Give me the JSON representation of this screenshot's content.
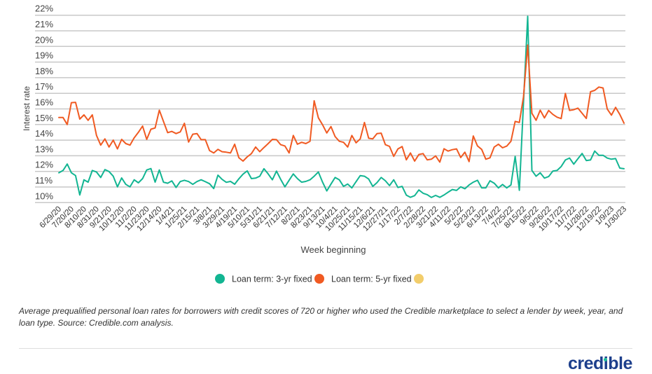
{
  "chart_data": {
    "type": "line",
    "title": "",
    "xlabel": "Week beginning",
    "ylabel": "Interest rate",
    "ylim": [
      10,
      22
    ],
    "yticks": [
      "10%",
      "11%",
      "12%",
      "13%",
      "14%",
      "15%",
      "16%",
      "17%",
      "18%",
      "19%",
      "20%",
      "21%",
      "22%"
    ],
    "x_start": "6/29/20",
    "x_interval": "weekly",
    "xtick_every": 3,
    "xticks": [
      "6/29/20",
      "7/20/20",
      "8/10/20",
      "8/31/20",
      "9/21/20",
      "10/12/20",
      "11/2/20",
      "11/23/20",
      "12/14/20",
      "1/4/21",
      "1/25/21",
      "2/15/21",
      "3/8/21",
      "3/29/21",
      "4/19/21",
      "5/10/21",
      "5/31/21",
      "6/21/21",
      "7/12/21",
      "8/2/21",
      "8/23/21",
      "9/13/21",
      "10/4/21",
      "10/25/21",
      "11/15/21",
      "12/6/21",
      "12/27/21",
      "1/17/22",
      "2/7/22",
      "2/28/22",
      "3/21/22",
      "4/11/22",
      "5/2/22",
      "5/23/22",
      "6/13/22",
      "7/4/22",
      "7/25/22",
      "8/15/22",
      "9/5/22",
      "9/26/22",
      "10/17/22",
      "11/7/22",
      "11/28/22",
      "12/19/22",
      "1/9/23",
      "1/30/23"
    ],
    "grid": true,
    "legend_position": "bottom-center",
    "series": [
      {
        "name": "Loan term: 3-yr fixed",
        "color": "#12b592",
        "values": [
          11.91,
          12.06,
          12.47,
          11.91,
          11.73,
          10.49,
          11.46,
          11.31,
          12.06,
          11.96,
          11.61,
          12.11,
          11.99,
          11.69,
          11.01,
          11.58,
          11.17,
          11.01,
          11.46,
          11.27,
          11.54,
          12.09,
          12.18,
          11.31,
          12.09,
          11.31,
          11.24,
          11.39,
          10.97,
          11.35,
          11.43,
          11.35,
          11.17,
          11.35,
          11.46,
          11.34,
          11.21,
          10.9,
          11.76,
          11.49,
          11.3,
          11.36,
          11.18,
          11.52,
          11.82,
          12.03,
          11.54,
          11.57,
          11.69,
          12.17,
          11.84,
          11.46,
          12.02,
          11.49,
          11.01,
          11.43,
          11.84,
          11.54,
          11.31,
          11.36,
          11.46,
          11.69,
          11.96,
          11.31,
          10.75,
          11.19,
          11.61,
          11.46,
          11.04,
          11.19,
          10.94,
          11.34,
          11.73,
          11.69,
          11.51,
          11.04,
          11.28,
          11.61,
          11.4,
          11.09,
          11.46,
          10.97,
          11.04,
          10.48,
          10.34,
          10.45,
          10.81,
          10.6,
          10.51,
          10.33,
          10.46,
          10.34,
          10.49,
          10.67,
          10.84,
          10.78,
          11.01,
          10.89,
          11.13,
          11.31,
          11.43,
          10.94,
          10.94,
          11.4,
          11.24,
          10.94,
          11.16,
          10.94,
          11.13,
          12.96,
          10.79,
          16.4,
          21.93,
          12.06,
          11.69,
          11.91,
          11.57,
          11.67,
          12.02,
          12.06,
          12.31,
          12.73,
          12.85,
          12.46,
          12.81,
          13.15,
          12.69,
          12.73,
          13.3,
          13.03,
          13.03,
          12.85,
          12.78,
          12.82,
          12.21,
          12.17
        ]
      },
      {
        "name": "Loan term: 5-yr fixed",
        "color": "#f05a22",
        "values": [
          15.45,
          15.45,
          15.0,
          16.4,
          16.42,
          15.35,
          15.62,
          15.27,
          15.62,
          14.3,
          13.68,
          14.08,
          13.56,
          14.0,
          13.44,
          14.05,
          13.78,
          13.68,
          14.15,
          14.5,
          14.9,
          14.05,
          14.7,
          14.78,
          15.92,
          15.2,
          14.48,
          14.56,
          14.42,
          14.53,
          15.08,
          13.88,
          14.38,
          14.42,
          14.03,
          14.03,
          13.33,
          13.18,
          13.41,
          13.26,
          13.23,
          13.18,
          13.74,
          12.88,
          12.66,
          12.93,
          13.14,
          13.56,
          13.26,
          13.53,
          13.78,
          14.05,
          14.03,
          13.71,
          13.63,
          13.18,
          14.3,
          13.74,
          13.86,
          13.78,
          13.93,
          16.52,
          15.43,
          14.98,
          14.46,
          14.87,
          14.23,
          13.93,
          13.86,
          13.56,
          14.3,
          13.83,
          14.08,
          15.13,
          14.12,
          14.08,
          14.42,
          14.45,
          13.71,
          13.6,
          12.96,
          13.44,
          13.59,
          12.74,
          13.18,
          12.66,
          13.08,
          13.14,
          12.74,
          12.78,
          12.99,
          12.59,
          13.45,
          13.3,
          13.39,
          13.44,
          12.89,
          13.23,
          12.63,
          14.27,
          13.63,
          13.41,
          12.78,
          12.87,
          13.56,
          13.74,
          13.51,
          13.62,
          13.93,
          15.2,
          15.13,
          16.77,
          20.09,
          15.72,
          15.27,
          15.92,
          15.42,
          15.9,
          15.65,
          15.47,
          15.38,
          16.99,
          15.9,
          15.95,
          16.05,
          15.72,
          15.39,
          17.1,
          17.19,
          17.4,
          17.34,
          15.99,
          15.6,
          16.1,
          15.65,
          15.09
        ]
      },
      {
        "name": "",
        "color": "#f2cd6b",
        "values": []
      }
    ]
  },
  "caption": "Average prequalified personal loan rates for borrowers with credit scores of 720 or higher who used the Credible marketplace to select a lender by week, year, and loan type. Source: Credible.com analysis.",
  "logo": "credible"
}
